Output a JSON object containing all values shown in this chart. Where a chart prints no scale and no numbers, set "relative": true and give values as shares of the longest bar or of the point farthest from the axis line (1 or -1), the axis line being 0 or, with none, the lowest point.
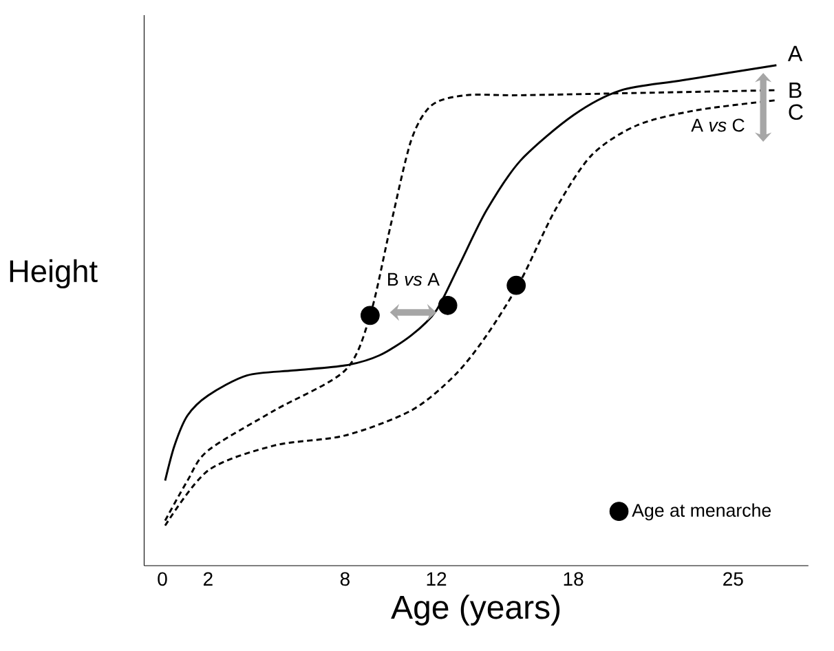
{
  "chart_data": {
    "type": "line",
    "relative": true,
    "xlabel": "Age (years)",
    "ylabel": "Height",
    "xlim": [
      -0.8,
      28.3
    ],
    "xticks": [
      0,
      2,
      8,
      12,
      18,
      25
    ],
    "series": [
      {
        "name": "A",
        "color": "#000000",
        "line_style": "solid",
        "x": [
          0.12,
          0.53,
          1.1,
          2,
          3.7,
          5.75,
          8,
          9.5,
          10.9,
          12,
          13.0,
          14.2,
          15.7,
          18,
          20.1,
          22.8,
          26.9
        ],
        "values": [
          0.17,
          0.24,
          0.3,
          0.34,
          0.38,
          0.39,
          0.4,
          0.42,
          0.46,
          0.51,
          0.6,
          0.71,
          0.81,
          0.9,
          0.95,
          0.97,
          1.0
        ]
      },
      {
        "name": "B",
        "color": "#000000",
        "line_style": "dashed",
        "x": [
          0.12,
          1.1,
          2,
          4.9,
          8,
          9.1,
          10,
          10.9,
          11.8,
          13.3,
          15.7,
          21.4,
          26.9
        ],
        "values": [
          0.09,
          0.17,
          0.23,
          0.31,
          0.39,
          0.5,
          0.68,
          0.85,
          0.92,
          0.94,
          0.94,
          0.945,
          0.95
        ]
      },
      {
        "name": "C",
        "color": "#000000",
        "line_style": "dashed",
        "x": [
          0.12,
          2,
          4.9,
          8,
          10.9,
          12.8,
          14.2,
          15.7,
          17.2,
          18.8,
          20.8,
          23.4,
          26.9
        ],
        "values": [
          0.08,
          0.19,
          0.24,
          0.26,
          0.31,
          0.38,
          0.46,
          0.57,
          0.71,
          0.82,
          0.88,
          0.91,
          0.93
        ]
      },
      {
        "name": "Age at menarche",
        "type": "scatter",
        "color": "#000000",
        "marker": "circle",
        "x": [
          9.1,
          12.5,
          15.5
        ],
        "values": [
          0.5,
          0.52,
          0.56
        ]
      }
    ],
    "annotations": [
      "B *vs* A",
      "A *vs* C"
    ],
    "legend": "bottom right"
  }
}
